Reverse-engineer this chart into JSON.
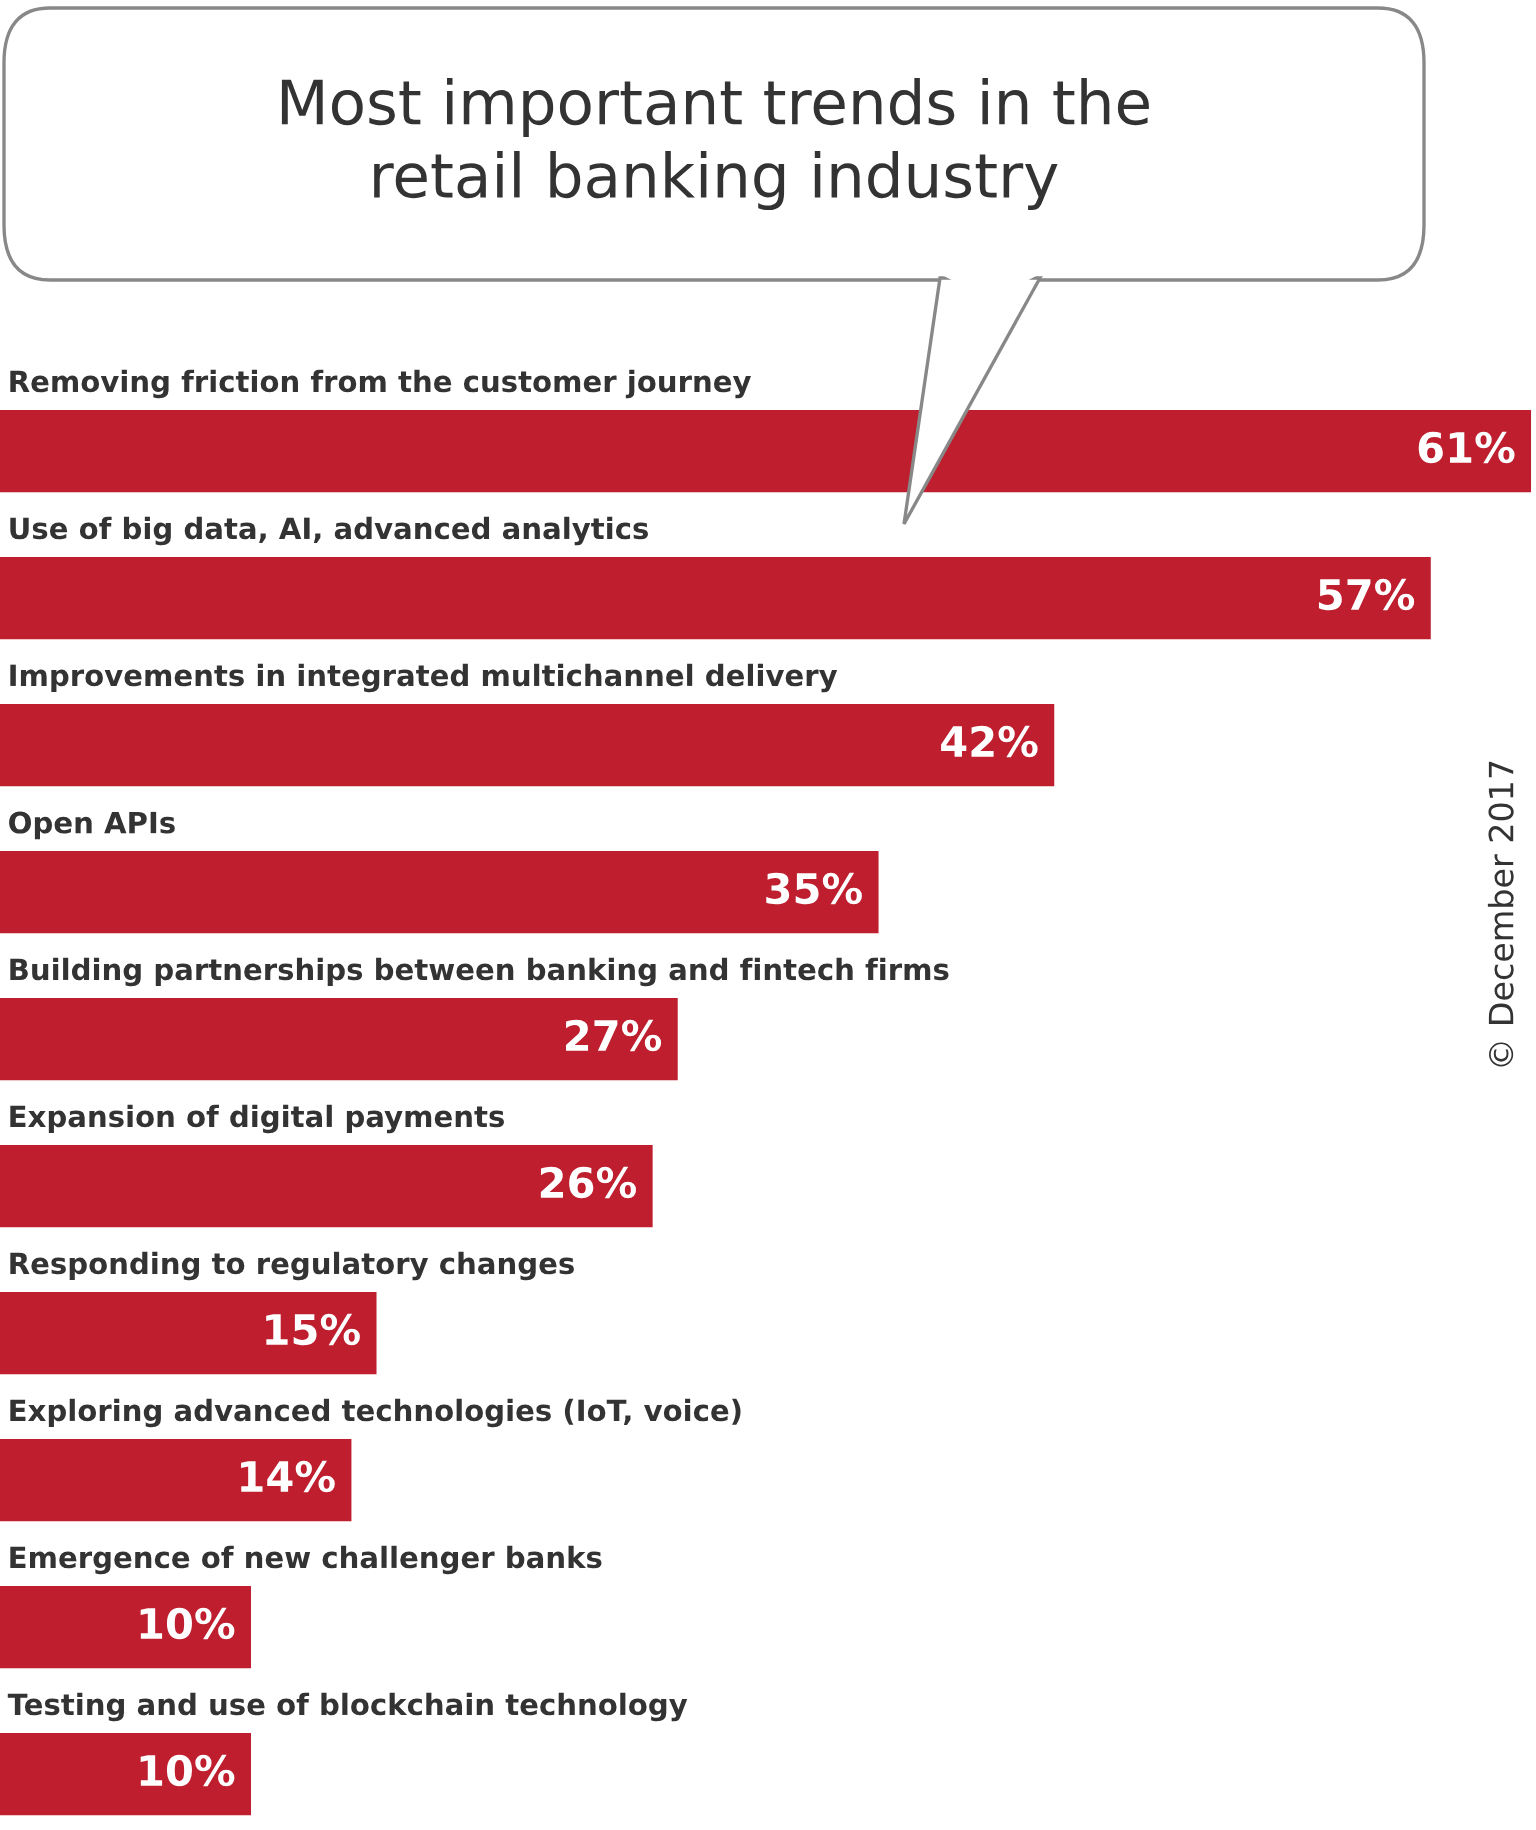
{
  "chart_data": {
    "type": "bar",
    "orientation": "horizontal",
    "title": "Most important trends in the\nretail banking industry",
    "categories": [
      "Removing friction from the customer journey",
      "Use of big data, AI, advanced analytics",
      "Improvements in integrated multichannel delivery",
      "Open APIs",
      "Building partnerships between banking and fintech firms",
      "Expansion of digital payments",
      "Responding to regulatory changes",
      "Exploring advanced technologies (IoT, voice)",
      "Emergence of new challenger banks",
      "Testing and use of blockchain technology"
    ],
    "values": [
      61,
      57,
      42,
      35,
      27,
      26,
      15,
      14,
      10,
      10
    ],
    "value_labels": [
      "61%",
      "57%",
      "42%",
      "35%",
      "27%",
      "26%",
      "15%",
      "14%",
      "10%",
      "10%"
    ],
    "color": "#be1e2d",
    "annotations": [
      "© December 2017"
    ]
  }
}
